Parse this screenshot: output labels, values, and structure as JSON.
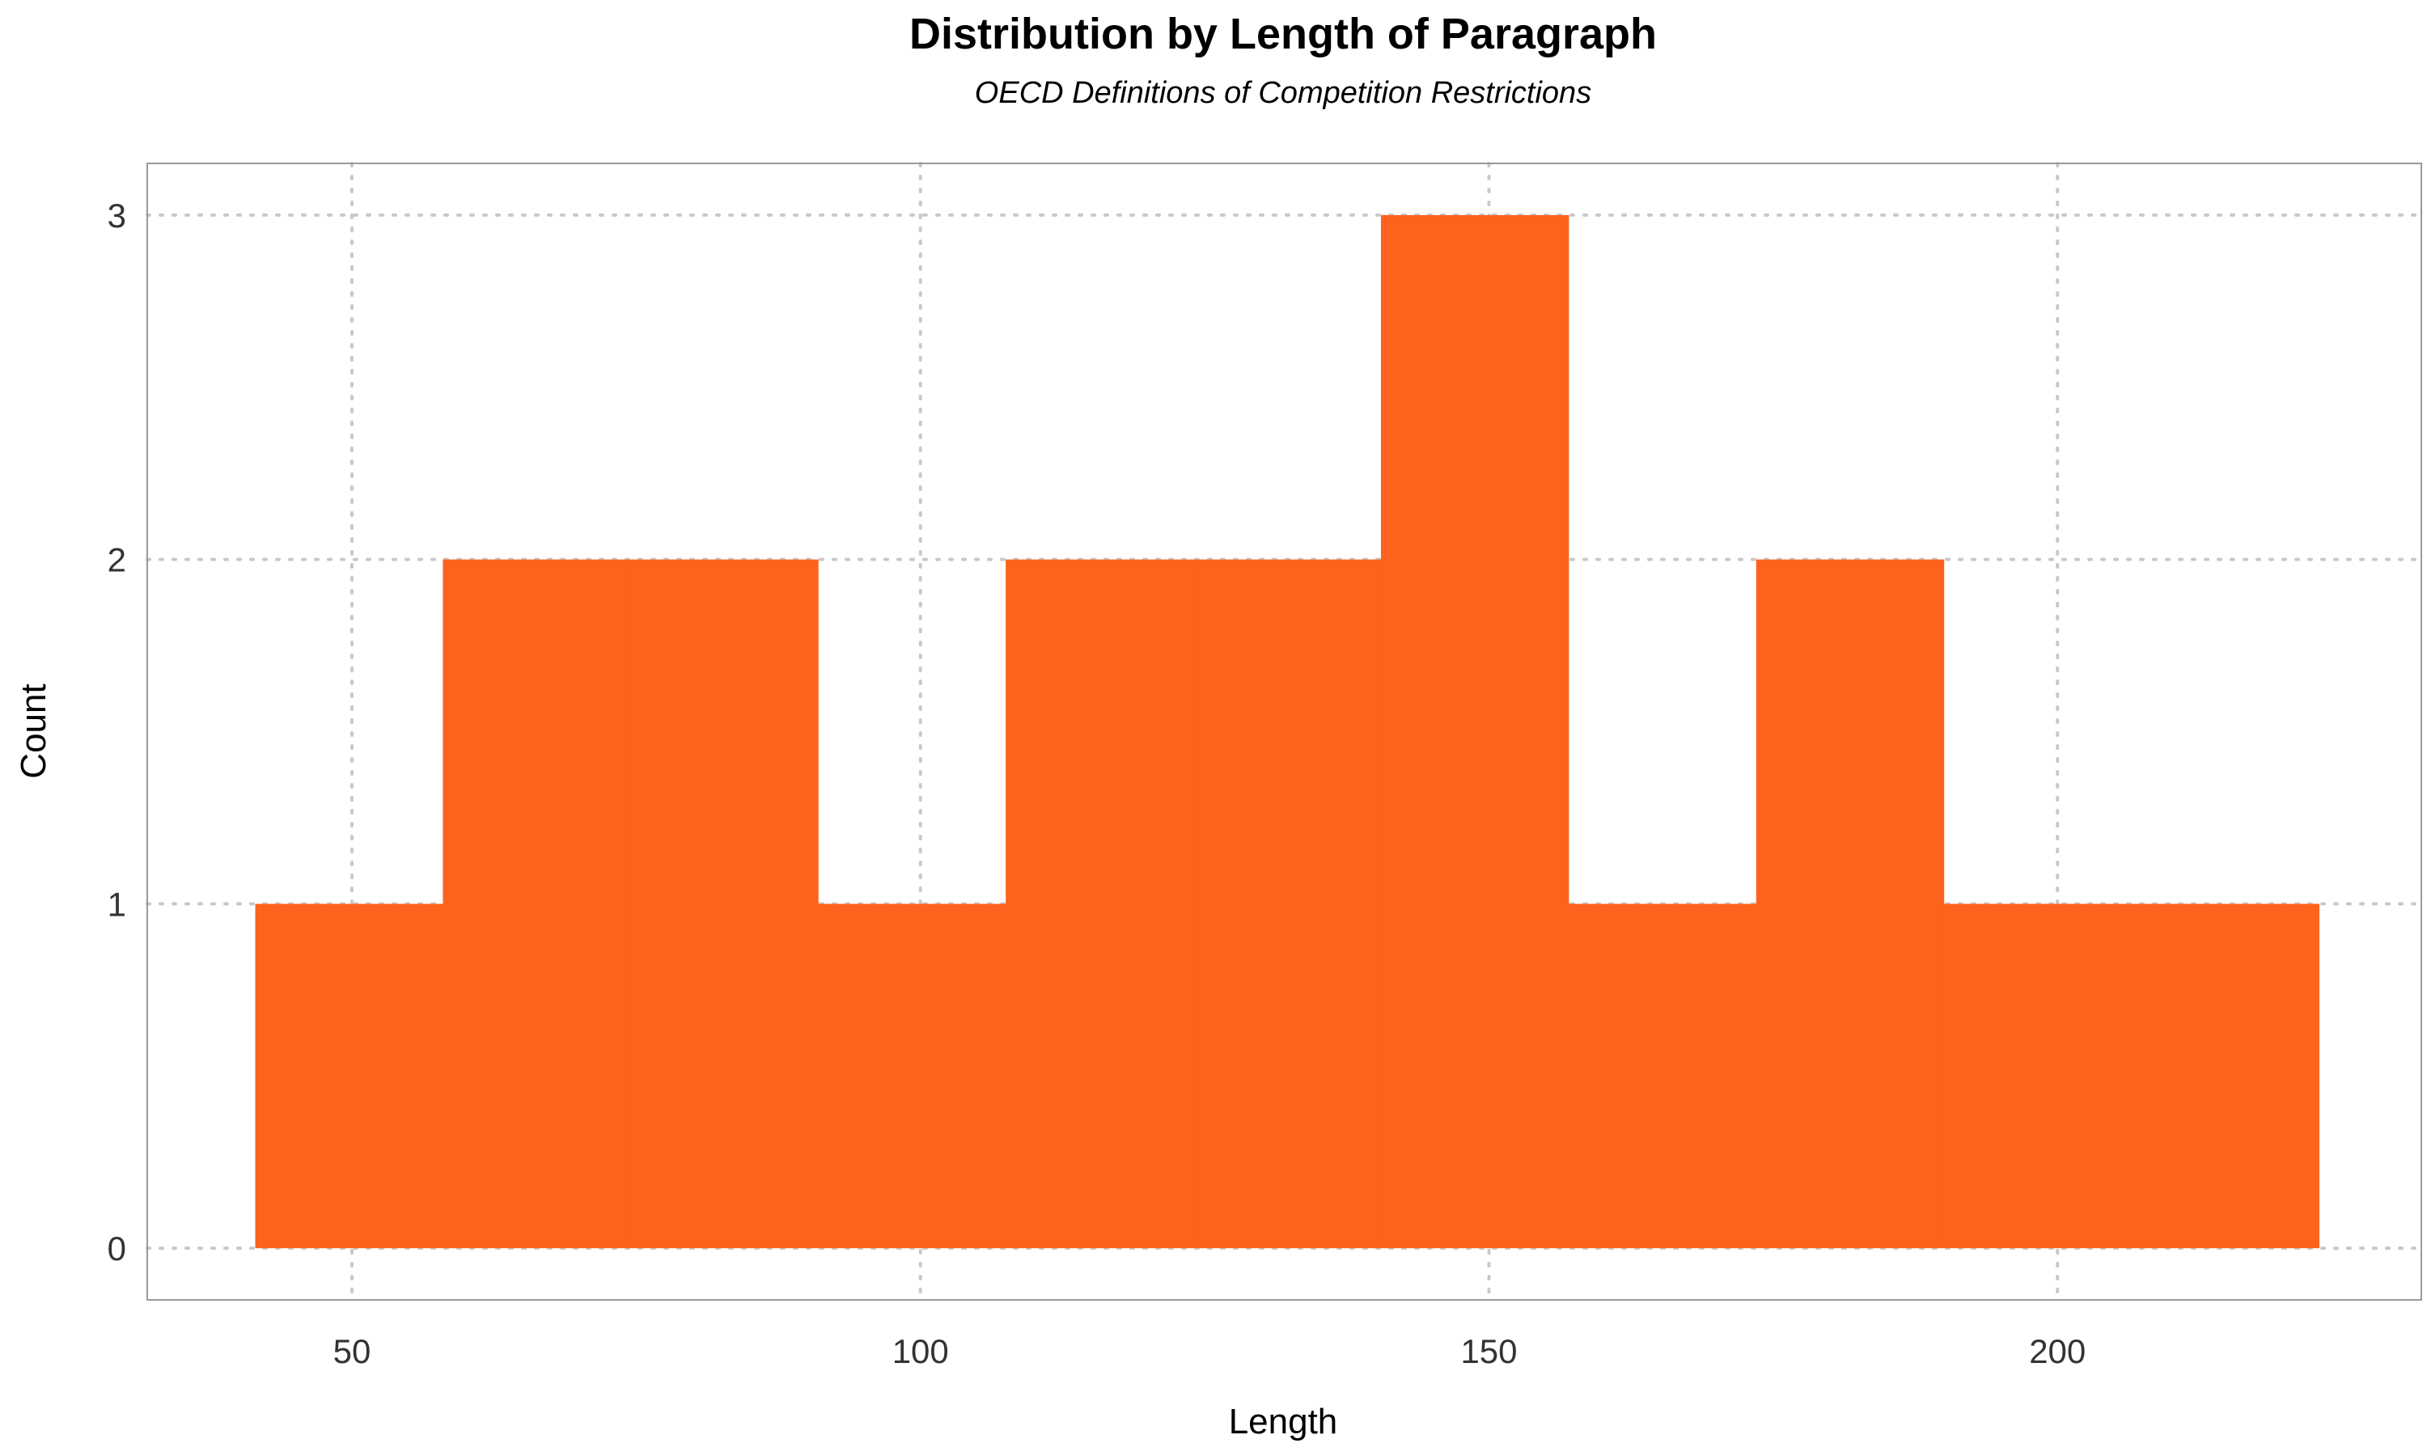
{
  "chart_data": {
    "type": "bar",
    "title": "Distribution by Length of Paragraph",
    "subtitle": "OECD Definitions of Competition Restrictions",
    "xlabel": "Length",
    "ylabel": "Count",
    "bin_edges": [
      41.5,
      58,
      74.5,
      91,
      107.5,
      124,
      140.5,
      157,
      173.5,
      190,
      206.5,
      223
    ],
    "values": [
      1,
      2,
      2,
      1,
      2,
      2,
      3,
      1,
      2,
      1,
      1
    ],
    "xlim": [
      32,
      232
    ],
    "ylim": [
      -0.15,
      3.15
    ],
    "x_ticks": [
      50,
      100,
      150,
      200
    ],
    "x_tick_labels": [
      "50",
      "100",
      "150",
      "200"
    ],
    "y_ticks": [
      0,
      1,
      2,
      3
    ],
    "y_tick_labels": [
      "0",
      "1",
      "2",
      "3"
    ],
    "grid": true,
    "bar_color": "#fd631d"
  }
}
